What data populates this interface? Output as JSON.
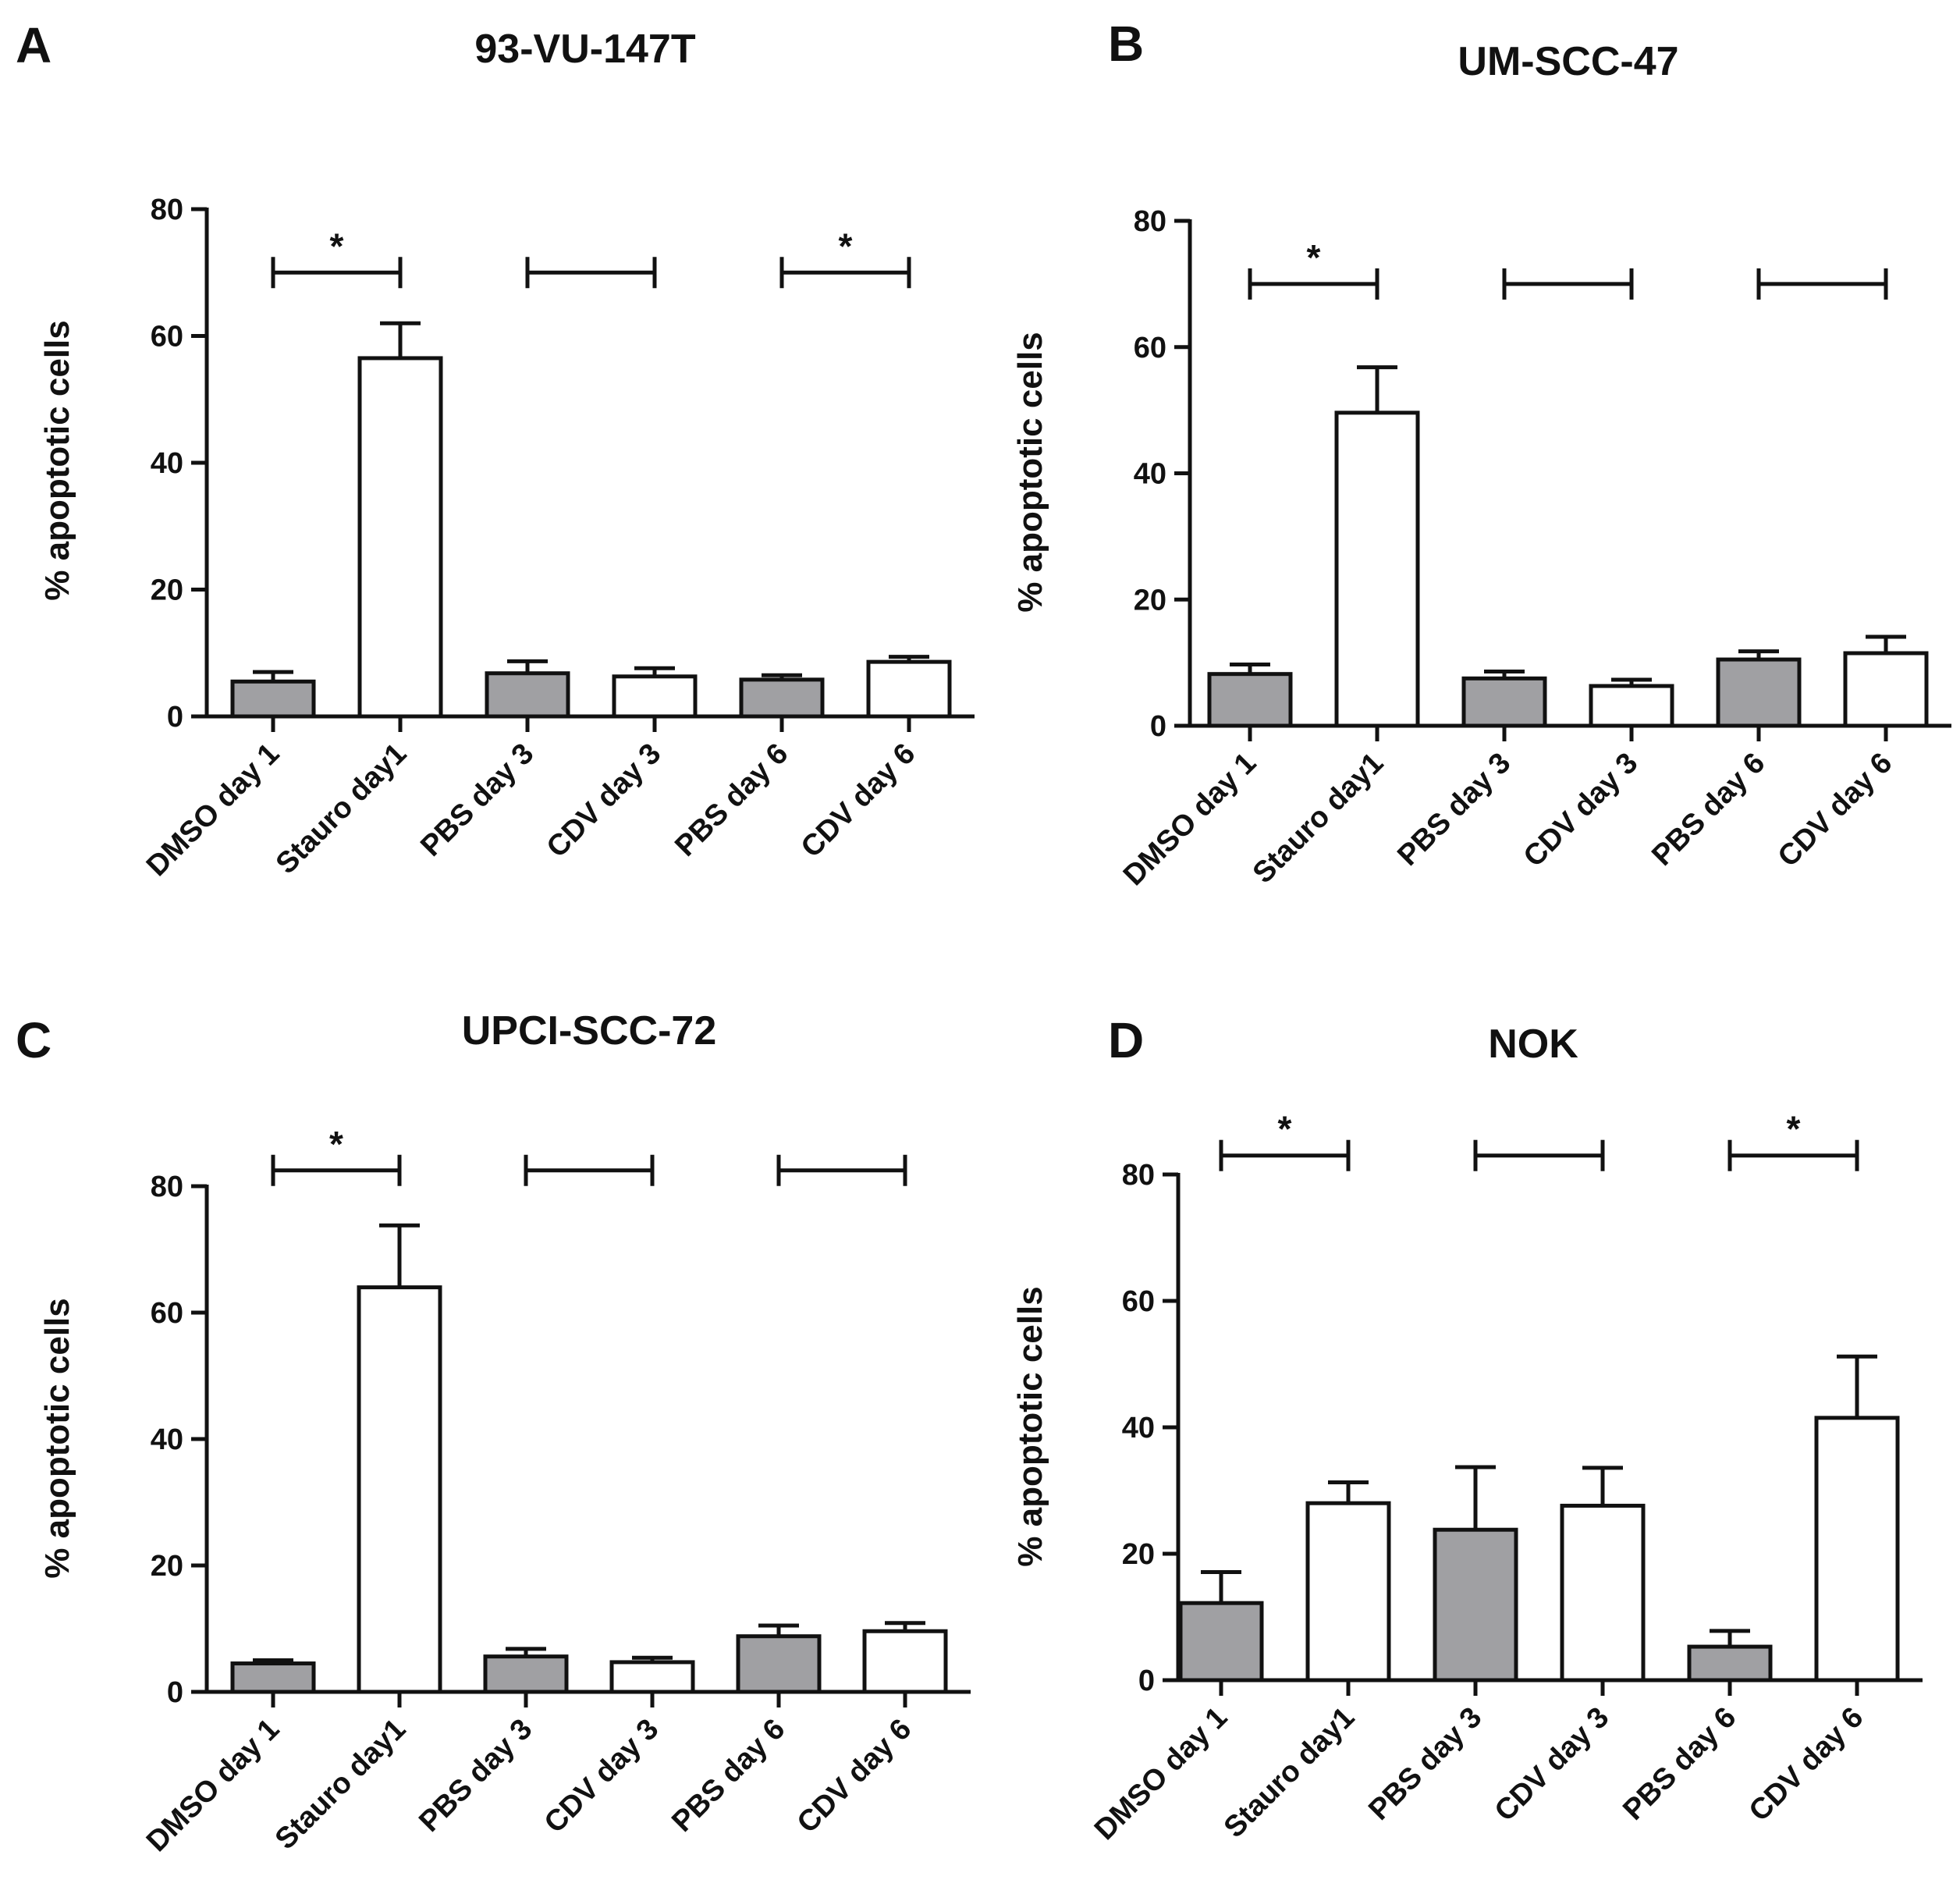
{
  "figure": {
    "description_colors": {
      "control_bar": "#a0a0a3",
      "treated_bar": "#ffffff",
      "stroke": "#111111"
    }
  },
  "chart_data": [
    {
      "panel": "A",
      "type": "bar",
      "title": "93-VU-147T",
      "ylabel": "% apoptotic cells",
      "xlabel": "",
      "ylim": [
        0,
        80
      ],
      "yticks": [
        0,
        20,
        40,
        60,
        80
      ],
      "categories": [
        "DMSO day 1",
        "Stauro day1",
        "PBS day 3",
        "CDV day 3",
        "PBS day 6",
        "CDV day 6"
      ],
      "values": [
        5.5,
        56.5,
        6.8,
        6.3,
        5.8,
        8.6
      ],
      "errors": [
        1.5,
        5.5,
        1.9,
        1.3,
        0.7,
        0.8
      ],
      "fills": [
        "#a0a0a3",
        "#ffffff",
        "#a0a0a3",
        "#ffffff",
        "#a0a0a3",
        "#ffffff"
      ],
      "comparisons": [
        {
          "from": 0,
          "to": 1,
          "level": 70,
          "label": "*"
        },
        {
          "from": 2,
          "to": 3,
          "level": 70,
          "label": ""
        },
        {
          "from": 4,
          "to": 5,
          "level": 70,
          "label": "*"
        }
      ]
    },
    {
      "panel": "B",
      "type": "bar",
      "title": "UM-SCC-47",
      "ylabel": "% apoptotic cells",
      "xlabel": "",
      "ylim": [
        0,
        80
      ],
      "yticks": [
        0,
        20,
        40,
        60,
        80
      ],
      "categories": [
        "DMSO day 1",
        "Stauro day1",
        "PBS day 3",
        "CDV day 3",
        "PBS day 6",
        "CDV day 6"
      ],
      "values": [
        8.2,
        49.6,
        7.5,
        6.3,
        10.5,
        11.5
      ],
      "errors": [
        1.5,
        7.2,
        1.1,
        1.0,
        1.3,
        2.6
      ],
      "fills": [
        "#a0a0a3",
        "#ffffff",
        "#a0a0a3",
        "#ffffff",
        "#a0a0a3",
        "#ffffff"
      ],
      "comparisons": [
        {
          "from": 0,
          "to": 1,
          "level": 70,
          "label": "*"
        },
        {
          "from": 2,
          "to": 3,
          "level": 70,
          "label": ""
        },
        {
          "from": 4,
          "to": 5,
          "level": 70,
          "label": ""
        }
      ]
    },
    {
      "panel": "C",
      "type": "bar",
      "title": "UPCI-SCC-72",
      "ylabel": "% apoptotic cells",
      "xlabel": "",
      "ylim": [
        0,
        80
      ],
      "yticks": [
        0,
        20,
        40,
        60,
        80
      ],
      "categories": [
        "DMSO day 1",
        "Stauro day1",
        "PBS day 3",
        "CDV day 3",
        "PBS day 6",
        "CDV day 6"
      ],
      "values": [
        4.5,
        64.0,
        5.6,
        4.7,
        8.8,
        9.6
      ],
      "errors": [
        0.5,
        9.8,
        1.2,
        0.7,
        1.7,
        1.3
      ],
      "fills": [
        "#a0a0a3",
        "#ffffff",
        "#a0a0a3",
        "#ffffff",
        "#a0a0a3",
        "#ffffff"
      ],
      "comparisons": [
        {
          "from": 0,
          "to": 1,
          "level": 82.5,
          "label": "*"
        },
        {
          "from": 2,
          "to": 3,
          "level": 82.5,
          "label": ""
        },
        {
          "from": 4,
          "to": 5,
          "level": 82.5,
          "label": ""
        }
      ]
    },
    {
      "panel": "D",
      "type": "bar",
      "title": "NOK",
      "ylabel": "% apoptotic cells",
      "xlabel": "",
      "ylim": [
        0,
        80
      ],
      "yticks": [
        0,
        20,
        40,
        60,
        80
      ],
      "categories": [
        "DMSO day 1",
        "Stauro day1",
        "PBS day 3",
        "CDV day 3",
        "PBS day 6",
        "CDV day 6"
      ],
      "values": [
        12.2,
        28.0,
        23.8,
        27.6,
        5.3,
        41.5
      ],
      "errors": [
        4.9,
        3.3,
        9.9,
        6.0,
        2.5,
        9.7
      ],
      "fills": [
        "#a0a0a3",
        "#ffffff",
        "#a0a0a3",
        "#ffffff",
        "#a0a0a3",
        "#ffffff"
      ],
      "comparisons": [
        {
          "from": 0,
          "to": 1,
          "level": 83,
          "label": "*"
        },
        {
          "from": 2,
          "to": 3,
          "level": 83,
          "label": ""
        },
        {
          "from": 4,
          "to": 5,
          "level": 83,
          "label": "*"
        }
      ]
    }
  ]
}
